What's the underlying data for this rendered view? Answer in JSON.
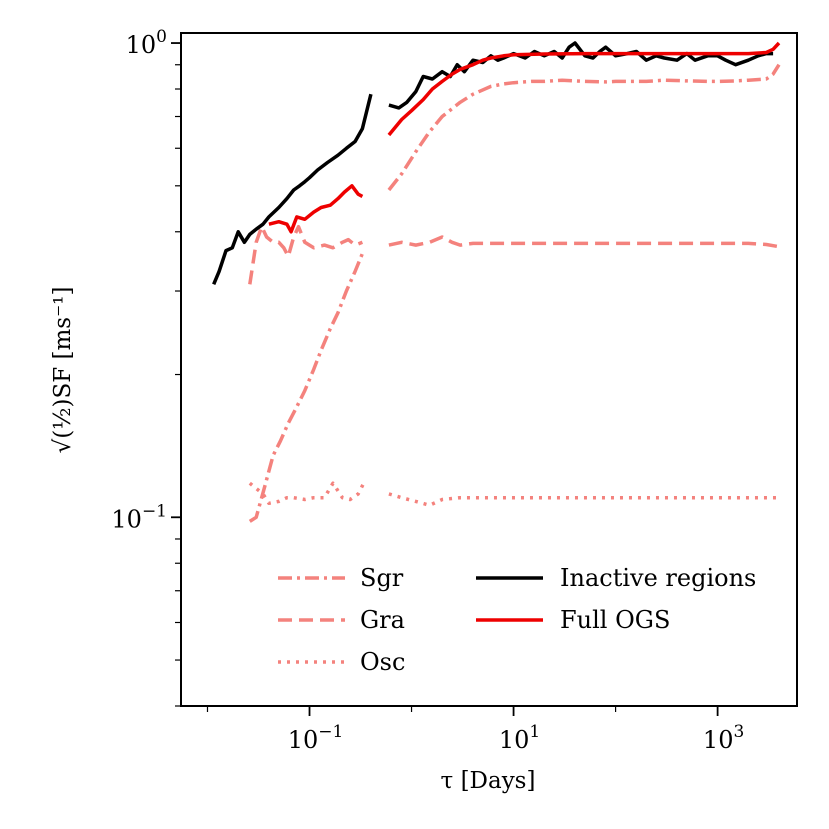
{
  "chart_data": {
    "type": "line",
    "xscale": "log",
    "yscale": "log",
    "xlim": [
      0.0055,
      6000
    ],
    "ylim": [
      0.04,
      1.05
    ],
    "xlabel": "τ [Days]",
    "ylabel": "√(½)SF [ms⁻¹]",
    "xtick_labels": [
      {
        "value": 0.1,
        "base": "10",
        "exp": "−1"
      },
      {
        "value": 10,
        "base": "10",
        "exp": "1"
      },
      {
        "value": 1000,
        "base": "10",
        "exp": "3"
      }
    ],
    "ytick_labels": [
      {
        "value": 0.1,
        "base": "10",
        "exp": "−1"
      },
      {
        "value": 1,
        "base": "10",
        "exp": "0"
      }
    ],
    "legend": {
      "col1": [
        "Sgr",
        "Gra",
        "Osc"
      ],
      "col2": [
        "Inactive regions",
        "Full OGS"
      ]
    },
    "colors": {
      "black": "#000000",
      "red": "#ee0000",
      "pink": "#f4827d"
    },
    "series": [
      {
        "name": "Sgr",
        "color": "#f4827d",
        "dash": "14,5,3,5",
        "width": 3.5,
        "segments": [
          {
            "x": [
              0.026,
              0.03,
              0.036,
              0.044,
              0.052,
              0.062,
              0.074,
              0.09,
              0.11,
              0.13,
              0.16,
              0.19,
              0.23,
              0.28,
              0.33
            ],
            "y": [
              0.098,
              0.1,
              0.115,
              0.135,
              0.145,
              0.158,
              0.17,
              0.185,
              0.205,
              0.225,
              0.25,
              0.27,
              0.3,
              0.33,
              0.36
            ]
          },
          {
            "x": [
              0.6,
              0.8,
              1.1,
              1.5,
              2,
              3,
              4,
              6,
              8,
              10,
              15,
              20,
              30,
              50,
              80,
              100,
              200,
              300,
              500,
              800,
              1000,
              1500,
              2000,
              3000,
              3500,
              4000
            ],
            "y": [
              0.49,
              0.53,
              0.59,
              0.65,
              0.7,
              0.75,
              0.78,
              0.81,
              0.82,
              0.825,
              0.83,
              0.83,
              0.835,
              0.83,
              0.828,
              0.83,
              0.83,
              0.835,
              0.832,
              0.83,
              0.83,
              0.832,
              0.835,
              0.84,
              0.86,
              0.9
            ]
          }
        ]
      },
      {
        "name": "Gra",
        "color": "#f4827d",
        "dash": "14,7",
        "width": 3.5,
        "segments": [
          {
            "x": [
              0.026,
              0.03,
              0.034,
              0.038,
              0.044,
              0.05,
              0.056,
              0.062,
              0.07,
              0.078,
              0.09,
              0.11,
              0.14,
              0.17,
              0.21,
              0.24,
              0.28,
              0.33
            ],
            "y": [
              0.31,
              0.38,
              0.41,
              0.39,
              0.38,
              0.38,
              0.37,
              0.355,
              0.39,
              0.41,
              0.38,
              0.37,
              0.375,
              0.37,
              0.38,
              0.385,
              0.375,
              0.38
            ]
          },
          {
            "x": [
              0.6,
              0.8,
              1.1,
              1.5,
              2,
              2.5,
              3,
              4,
              6,
              10,
              20,
              50,
              100,
              200,
              500,
              1000,
              2000,
              3000,
              4000
            ],
            "y": [
              0.375,
              0.38,
              0.375,
              0.38,
              0.39,
              0.38,
              0.375,
              0.378,
              0.378,
              0.378,
              0.378,
              0.378,
              0.378,
              0.378,
              0.378,
              0.378,
              0.378,
              0.376,
              0.372
            ]
          }
        ]
      },
      {
        "name": "Osc",
        "color": "#f4827d",
        "dash": "3,6",
        "width": 3.5,
        "segments": [
          {
            "x": [
              0.026,
              0.03,
              0.035,
              0.04,
              0.05,
              0.06,
              0.07,
              0.09,
              0.11,
              0.14,
              0.17,
              0.21,
              0.25,
              0.3,
              0.34
            ],
            "y": [
              0.118,
              0.115,
              0.112,
              0.107,
              0.108,
              0.11,
              0.11,
              0.109,
              0.11,
              0.11,
              0.118,
              0.11,
              0.109,
              0.112,
              0.118
            ]
          },
          {
            "x": [
              0.6,
              0.8,
              1.1,
              1.5,
              2,
              3,
              5,
              10,
              30,
              100,
              300,
              1000,
              3000,
              4000
            ],
            "y": [
              0.112,
              0.11,
              0.108,
              0.106,
              0.109,
              0.11,
              0.11,
              0.11,
              0.11,
              0.11,
              0.11,
              0.11,
              0.11,
              0.11
            ]
          }
        ]
      },
      {
        "name": "Inactive regions",
        "color": "#000000",
        "dash": "",
        "width": 3.5,
        "segments": [
          {
            "x": [
              0.0115,
              0.013,
              0.0152,
              0.0175,
              0.02,
              0.023,
              0.026,
              0.03,
              0.035,
              0.04,
              0.05,
              0.06,
              0.07,
              0.08,
              0.09,
              0.1,
              0.12,
              0.15,
              0.19,
              0.23,
              0.28,
              0.33,
              0.4
            ],
            "y": [
              0.31,
              0.33,
              0.365,
              0.37,
              0.4,
              0.38,
              0.395,
              0.405,
              0.415,
              0.43,
              0.45,
              0.47,
              0.49,
              0.5,
              0.51,
              0.52,
              0.54,
              0.56,
              0.58,
              0.6,
              0.62,
              0.66,
              0.78
            ]
          },
          {
            "x": [
              0.6,
              0.75,
              0.9,
              1.1,
              1.3,
              1.6,
              2,
              2.4,
              2.8,
              3.3,
              4,
              5,
              6,
              7,
              8,
              10,
              13,
              16,
              20,
              25,
              30,
              35,
              40,
              50,
              60,
              70,
              80,
              100,
              130,
              160,
              200,
              250,
              300,
              400,
              500,
              600,
              800,
              1000,
              1200,
              1500,
              2000,
              2500,
              3000,
              3500
            ],
            "y": [
              0.74,
              0.73,
              0.75,
              0.79,
              0.85,
              0.84,
              0.87,
              0.85,
              0.9,
              0.87,
              0.92,
              0.91,
              0.94,
              0.92,
              0.93,
              0.95,
              0.93,
              0.96,
              0.94,
              0.96,
              0.93,
              0.98,
              1.0,
              0.94,
              0.93,
              0.96,
              0.98,
              0.94,
              0.95,
              0.96,
              0.92,
              0.94,
              0.93,
              0.92,
              0.95,
              0.92,
              0.94,
              0.94,
              0.92,
              0.9,
              0.92,
              0.94,
              0.95,
              0.95
            ]
          }
        ]
      },
      {
        "name": "Full OGS",
        "color": "#ee0000",
        "dash": "",
        "width": 3.5,
        "segments": [
          {
            "x": [
              0.04,
              0.05,
              0.06,
              0.066,
              0.075,
              0.09,
              0.11,
              0.13,
              0.16,
              0.19,
              0.22,
              0.26,
              0.3,
              0.33
            ],
            "y": [
              0.415,
              0.42,
              0.415,
              0.4,
              0.43,
              0.425,
              0.44,
              0.45,
              0.455,
              0.47,
              0.485,
              0.5,
              0.48,
              0.475
            ]
          },
          {
            "x": [
              0.6,
              0.8,
              1,
              1.3,
              1.6,
              2,
              2.5,
              3,
              4,
              5,
              6,
              8,
              10,
              20,
              50,
              100,
              200,
              500,
              1000,
              2000,
              3000,
              3500,
              4000
            ],
            "y": [
              0.64,
              0.69,
              0.72,
              0.76,
              0.8,
              0.83,
              0.86,
              0.88,
              0.9,
              0.92,
              0.93,
              0.94,
              0.945,
              0.948,
              0.95,
              0.95,
              0.95,
              0.95,
              0.95,
              0.95,
              0.955,
              0.97,
              1.0
            ]
          }
        ]
      }
    ]
  }
}
